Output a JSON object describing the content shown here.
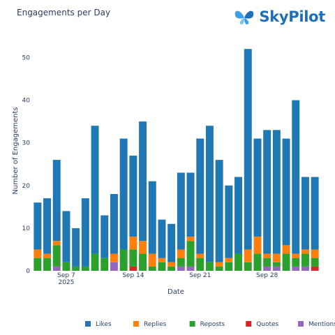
{
  "brand": {
    "name": "SkyPilot"
  },
  "chart_data": {
    "type": "bar",
    "stacked": true,
    "title": "Engagements per Day",
    "xlabel": "Date",
    "ylabel": "Number of Engagements",
    "x": [
      "2025-09-04",
      "2025-09-05",
      "2025-09-06",
      "2025-09-07",
      "2025-09-08",
      "2025-09-09",
      "2025-09-10",
      "2025-09-11",
      "2025-09-12",
      "2025-09-13",
      "2025-09-14",
      "2025-09-15",
      "2025-09-16",
      "2025-09-17",
      "2025-09-18",
      "2025-09-19",
      "2025-09-20",
      "2025-09-21",
      "2025-09-22",
      "2025-09-23",
      "2025-09-24",
      "2025-09-25",
      "2025-09-26",
      "2025-09-27",
      "2025-09-28",
      "2025-09-29",
      "2025-09-30",
      "2025-10-01",
      "2025-10-02",
      "2025-10-03"
    ],
    "x_ticks": [
      {
        "date": "2025-09-07",
        "lines": [
          "Sep 7",
          "2025"
        ]
      },
      {
        "date": "2025-09-14",
        "lines": [
          "Sep 14"
        ]
      },
      {
        "date": "2025-09-21",
        "lines": [
          "Sep 21"
        ]
      },
      {
        "date": "2025-09-28",
        "lines": [
          "Sep 28"
        ]
      }
    ],
    "y_ticks": [
      0,
      10,
      20,
      30,
      40,
      50
    ],
    "ylim": [
      0,
      54
    ],
    "grid": false,
    "legend_position": "bottom",
    "series": [
      {
        "name": "Mentions",
        "color": "#9467bd",
        "values": [
          0,
          0,
          1,
          0,
          0,
          0,
          0,
          0,
          2,
          0,
          0,
          0,
          0,
          0,
          0,
          1,
          1,
          0,
          0,
          0,
          0,
          0,
          0,
          0,
          1,
          1,
          0,
          1,
          1,
          0
        ]
      },
      {
        "name": "Quotes",
        "color": "#d62728",
        "values": [
          0,
          0,
          0,
          0,
          0,
          0,
          0,
          0,
          0,
          0,
          1,
          0,
          0,
          0,
          0,
          0,
          0,
          0,
          0,
          0,
          0,
          0,
          0,
          0,
          0,
          0,
          0,
          0,
          0,
          1
        ]
      },
      {
        "name": "Reposts",
        "color": "#2ca02c",
        "values": [
          3,
          3,
          5,
          2,
          1,
          1,
          4,
          3,
          0,
          5,
          4,
          4,
          1,
          2,
          1,
          2,
          6,
          3,
          2,
          1,
          2,
          4,
          2,
          4,
          2,
          1,
          4,
          2,
          3,
          2
        ]
      },
      {
        "name": "Replies",
        "color": "#ff7f0e",
        "values": [
          2,
          1,
          1,
          0,
          0,
          0,
          0,
          0,
          2,
          0,
          3,
          3,
          3,
          1,
          1,
          2,
          1,
          1,
          0,
          1,
          1,
          0,
          3,
          4,
          1,
          2,
          2,
          1,
          1,
          2
        ]
      },
      {
        "name": "Likes",
        "color": "#1f77b4",
        "values": [
          11,
          13,
          19,
          12,
          9,
          16,
          30,
          10,
          14,
          26,
          19,
          28,
          17,
          9,
          9,
          18,
          15,
          27,
          32,
          24,
          17,
          18,
          47,
          23,
          29,
          29,
          25,
          36,
          17,
          17
        ]
      }
    ],
    "legend_order": [
      "Likes",
      "Replies",
      "Reposts",
      "Quotes",
      "Mentions"
    ]
  }
}
